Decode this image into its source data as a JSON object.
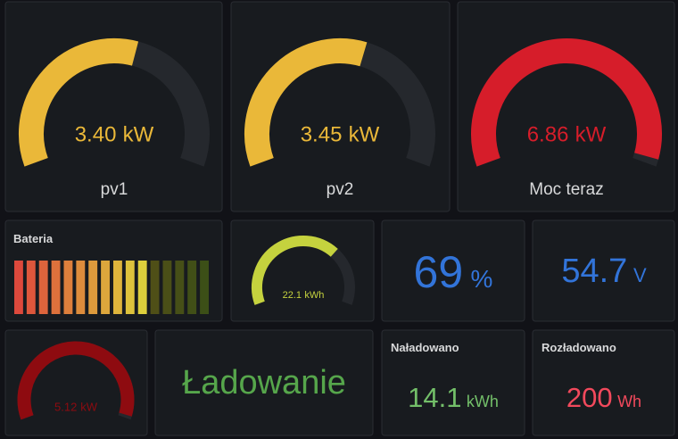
{
  "gauges": [
    {
      "label": "pv1",
      "value": 3.4,
      "value_label": "3.40",
      "unit": "kW",
      "range": [
        0,
        6
      ],
      "color": "#eab839"
    },
    {
      "label": "pv2",
      "value": 3.45,
      "value_label": "3.45",
      "unit": "kW",
      "range": [
        0,
        6
      ],
      "color": "#eab839"
    },
    {
      "label": "Moc teraz",
      "value": 6.86,
      "unit": "kW",
      "range": [
        0,
        7
      ],
      "color": "#d61d2a"
    },
    {
      "value": 22.1,
      "unit": "kWh",
      "range": [
        0,
        32
      ],
      "color": "#c5d23e"
    },
    {
      "value": 5.12,
      "unit": "kW",
      "range": [
        0,
        5.2
      ],
      "color": "#8e0b10"
    }
  ],
  "battery": {
    "title": "Bateria",
    "range": [
      0,
      100
    ]
  },
  "stats": [
    {
      "value": 69,
      "unit": "%",
      "color": "#3274d9"
    },
    {
      "value": 54.7,
      "unit": "V",
      "color": "#3274d9"
    },
    {
      "title": "Naładowano",
      "value": 14.1,
      "unit": "kWh",
      "color": "#73bf69"
    },
    {
      "title": "Rozładowano",
      "value": 200,
      "unit": "Wh",
      "color": "#f2495c"
    }
  ],
  "status": {
    "text": "Ładowanie",
    "color": "#56a64b"
  }
}
